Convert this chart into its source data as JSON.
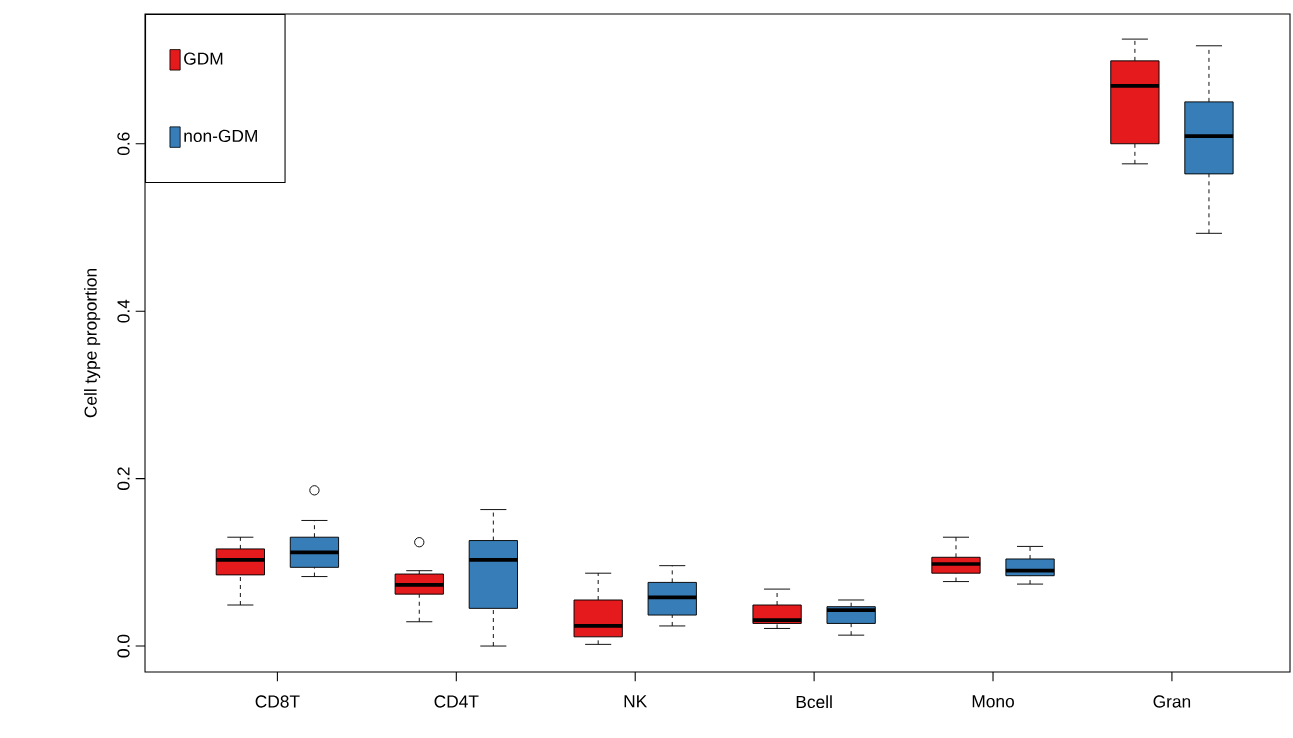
{
  "chart_data": {
    "type": "box",
    "ylabel": "Cell type proportion",
    "categories": [
      "CD8T",
      "CD4T",
      "NK",
      "Bcell",
      "Mono",
      "Gran"
    ],
    "ylim": [
      -0.031,
      0.755
    ],
    "yticks": [
      {
        "value": 0,
        "label": "0.0"
      },
      {
        "value": 0.2,
        "label": "0.2"
      },
      {
        "value": 0.4,
        "label": "0.4"
      },
      {
        "value": 0.6,
        "label": "0.6"
      }
    ],
    "legend": "top left",
    "grid": false,
    "series": [
      {
        "name": "GDM",
        "color": "#e41a1c",
        "boxes": [
          {
            "low": 0.049,
            "q1": 0.085,
            "median": 0.103,
            "q3": 0.116,
            "high": 0.13
          },
          {
            "low": 0.029,
            "q1": 0.062,
            "median": 0.073,
            "q3": 0.086,
            "high": 0.09,
            "outliers": [
              0.124
            ]
          },
          {
            "low": 0.002,
            "q1": 0.011,
            "median": 0.024,
            "q3": 0.055,
            "high": 0.087
          },
          {
            "low": 0.021,
            "q1": 0.027,
            "median": 0.031,
            "q3": 0.049,
            "high": 0.068
          },
          {
            "low": 0.077,
            "q1": 0.087,
            "median": 0.098,
            "q3": 0.106,
            "high": 0.13
          },
          {
            "low": 0.576,
            "q1": 0.6,
            "median": 0.669,
            "q3": 0.699,
            "high": 0.725
          }
        ]
      },
      {
        "name": "non-GDM",
        "color": "#377eb8",
        "boxes": [
          {
            "low": 0.083,
            "q1": 0.094,
            "median": 0.112,
            "q3": 0.13,
            "high": 0.15,
            "outliers": [
              0.186
            ]
          },
          {
            "low": 0.0,
            "q1": 0.045,
            "median": 0.103,
            "q3": 0.126,
            "high": 0.163
          },
          {
            "low": 0.024,
            "q1": 0.037,
            "median": 0.058,
            "q3": 0.076,
            "high": 0.096
          },
          {
            "low": 0.013,
            "q1": 0.027,
            "median": 0.043,
            "q3": 0.047,
            "high": 0.055
          },
          {
            "low": 0.074,
            "q1": 0.084,
            "median": 0.09,
            "q3": 0.104,
            "high": 0.119
          },
          {
            "low": 0.493,
            "q1": 0.564,
            "median": 0.609,
            "q3": 0.65,
            "high": 0.717
          }
        ]
      }
    ]
  }
}
